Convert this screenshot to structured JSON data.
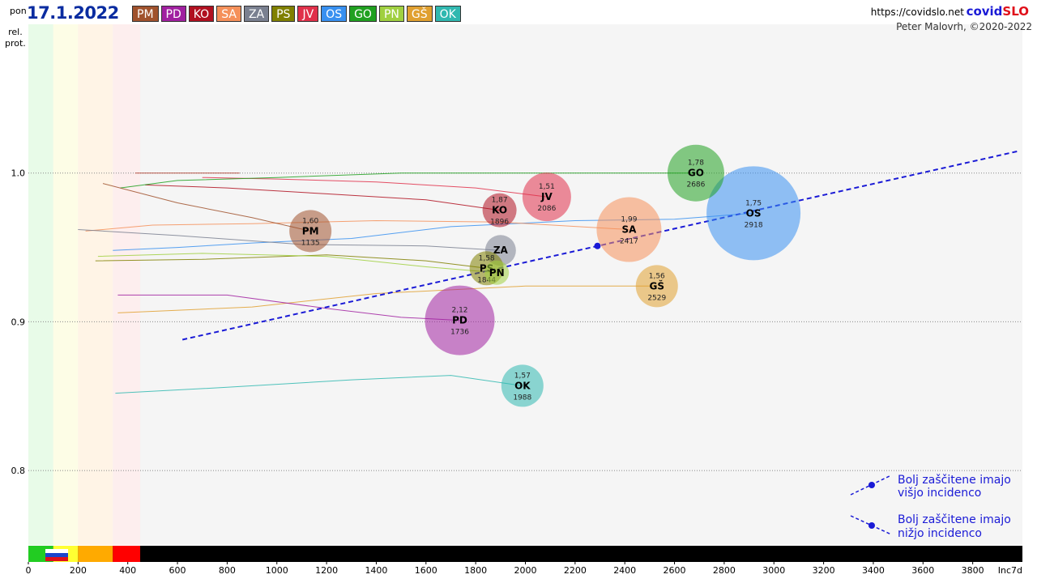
{
  "header": {
    "day": "pon",
    "date": "17.1.2022",
    "url": "https://covidslo.net",
    "brand_a": "covid",
    "brand_b": "SLO",
    "author": "Peter Malovrh, ©2020-2022"
  },
  "regions": [
    {
      "code": "PM",
      "color": "#a0522d"
    },
    {
      "code": "PD",
      "color": "#a020a0"
    },
    {
      "code": "KO",
      "color": "#b01020"
    },
    {
      "code": "SA",
      "color": "#f5905a"
    },
    {
      "code": "ZA",
      "color": "#7a8090"
    },
    {
      "code": "PS",
      "color": "#808000"
    },
    {
      "code": "JV",
      "color": "#e0304a"
    },
    {
      "code": "OS",
      "color": "#3890f0"
    },
    {
      "code": "GO",
      "color": "#20a020"
    },
    {
      "code": "PN",
      "color": "#a0d040"
    },
    {
      "code": "GŠ",
      "color": "#e0a030"
    },
    {
      "code": "OK",
      "color": "#30b8b0"
    }
  ],
  "chart_data": {
    "type": "scatter",
    "x_axis_label": "Inc7d",
    "y_axis_label": "rel. prot.",
    "xlim": [
      0,
      4000
    ],
    "ylim": [
      0.75,
      1.1
    ],
    "x_ticks": [
      "0",
      "200",
      "400",
      "600",
      "800",
      "1000",
      "1200",
      "1400",
      "1600",
      "1800",
      "2000",
      "2200",
      "2400",
      "2600",
      "2800",
      "3000",
      "3200",
      "3400",
      "3600",
      "3800"
    ],
    "y_ticks": [
      "0.8",
      "0.9",
      "1.0"
    ],
    "bubbles": [
      {
        "code": "PM",
        "x": 1135,
        "y": 0.961,
        "r_value": "1,60",
        "label": "1135",
        "radius": 26,
        "color": "#a0522d"
      },
      {
        "code": "PD",
        "x": 1736,
        "y": 0.901,
        "r_value": "2,12",
        "label": "1736",
        "radius": 43,
        "color": "#a020a0"
      },
      {
        "code": "KO",
        "x": 1896,
        "y": 0.975,
        "r_value": "1,87",
        "label": "1896",
        "radius": 21,
        "color": "#b01020"
      },
      {
        "code": "SA",
        "x": 2417,
        "y": 0.962,
        "r_value": "1,99",
        "label": "2417",
        "radius": 40,
        "color": "#f5905a"
      },
      {
        "code": "ZA",
        "x": 1900,
        "y": 0.948,
        "r_value": "",
        "label": "",
        "radius": 19,
        "color": "#7a8090"
      },
      {
        "code": "PS",
        "x": 1844,
        "y": 0.936,
        "r_value": "1,58",
        "label": "1844",
        "radius": 21,
        "color": "#808000"
      },
      {
        "code": "JV",
        "x": 2086,
        "y": 0.984,
        "r_value": "1,51",
        "label": "2086",
        "radius": 30,
        "color": "#e0304a"
      },
      {
        "code": "OS",
        "x": 2918,
        "y": 0.973,
        "r_value": "1,75",
        "label": "2918",
        "radius": 58,
        "color": "#3890f0"
      },
      {
        "code": "GO",
        "x": 2686,
        "y": 1.0,
        "r_value": "1,78",
        "label": "2686",
        "radius": 35,
        "color": "#20a020"
      },
      {
        "code": "PN",
        "x": 1885,
        "y": 0.933,
        "r_value": "",
        "label": "",
        "radius": 15,
        "color": "#a0d040"
      },
      {
        "code": "GŠ",
        "x": 2529,
        "y": 0.924,
        "r_value": "1,56",
        "label": "2529",
        "radius": 26,
        "color": "#e0a030"
      },
      {
        "code": "OK",
        "x": 1988,
        "y": 0.857,
        "r_value": "1,57",
        "label": "1988",
        "radius": 26,
        "color": "#30b8b0"
      }
    ],
    "trails": [
      {
        "code": "OS",
        "color": "#3890f0",
        "points": [
          [
            340,
            0.948
          ],
          [
            600,
            0.95
          ],
          [
            900,
            0.953
          ],
          [
            1300,
            0.956
          ],
          [
            1700,
            0.964
          ],
          [
            2200,
            0.968
          ],
          [
            2600,
            0.969
          ],
          [
            2918,
            0.973
          ]
        ]
      },
      {
        "code": "SA",
        "color": "#f5905a",
        "points": [
          [
            230,
            0.961
          ],
          [
            500,
            0.965
          ],
          [
            900,
            0.966
          ],
          [
            1400,
            0.968
          ],
          [
            1900,
            0.967
          ],
          [
            2417,
            0.962
          ]
        ]
      },
      {
        "code": "KO",
        "color": "#b01020",
        "points": [
          [
            470,
            0.992
          ],
          [
            800,
            0.99
          ],
          [
            1200,
            0.986
          ],
          [
            1600,
            0.982
          ],
          [
            1896,
            0.975
          ]
        ]
      },
      {
        "code": "JV",
        "color": "#e0304a",
        "points": [
          [
            700,
            0.997
          ],
          [
            1000,
            0.996
          ],
          [
            1400,
            0.994
          ],
          [
            1800,
            0.99
          ],
          [
            2086,
            0.984
          ]
        ]
      },
      {
        "code": "GO",
        "color": "#20a020",
        "points": [
          [
            370,
            0.99
          ],
          [
            600,
            0.995
          ],
          [
            1000,
            0.997
          ],
          [
            1500,
            1.0
          ],
          [
            2686,
            1.0
          ]
        ]
      },
      {
        "code": "PM",
        "color": "#a0522d",
        "points": [
          [
            300,
            0.993
          ],
          [
            600,
            0.98
          ],
          [
            900,
            0.97
          ],
          [
            1135,
            0.961
          ]
        ]
      },
      {
        "code": "ZA",
        "color": "#7a8090",
        "points": [
          [
            200,
            0.962
          ],
          [
            600,
            0.958
          ],
          [
            1100,
            0.952
          ],
          [
            1600,
            0.951
          ],
          [
            1900,
            0.948
          ]
        ]
      },
      {
        "code": "PS",
        "color": "#808000",
        "points": [
          [
            270,
            0.941
          ],
          [
            700,
            0.942
          ],
          [
            1200,
            0.945
          ],
          [
            1600,
            0.941
          ],
          [
            1844,
            0.936
          ]
        ]
      },
      {
        "code": "PN",
        "color": "#a0d040",
        "points": [
          [
            280,
            0.944
          ],
          [
            700,
            0.946
          ],
          [
            1200,
            0.944
          ],
          [
            1600,
            0.937
          ],
          [
            1885,
            0.933
          ]
        ]
      },
      {
        "code": "GŠ",
        "color": "#e0a030",
        "points": [
          [
            360,
            0.906
          ],
          [
            900,
            0.91
          ],
          [
            1400,
            0.919
          ],
          [
            2000,
            0.924
          ],
          [
            2529,
            0.924
          ]
        ]
      },
      {
        "code": "PD",
        "color": "#a020a0",
        "points": [
          [
            360,
            0.918
          ],
          [
            800,
            0.918
          ],
          [
            1200,
            0.909
          ],
          [
            1500,
            0.903
          ],
          [
            1736,
            0.901
          ]
        ]
      },
      {
        "code": "OK",
        "color": "#30b8b0",
        "points": [
          [
            350,
            0.852
          ],
          [
            800,
            0.856
          ],
          [
            1300,
            0.861
          ],
          [
            1700,
            0.864
          ],
          [
            1988,
            0.857
          ]
        ]
      },
      {
        "code": "PM2",
        "color": "#b04030",
        "points": [
          [
            430,
            1.0
          ],
          [
            850,
            1.0
          ]
        ]
      }
    ],
    "trend": {
      "x_from": 620,
      "y_from": 0.888,
      "x_to": 3990,
      "y_to": 1.015,
      "point_x": 2290,
      "point_y": 0.951
    },
    "legend": {
      "line1a": "Bolj  zaščitene imajo",
      "line1b": "višjo incidenco",
      "line2a": "Bolj  zaščitene imajo",
      "line2b": "nižjo incidenco"
    },
    "colors": {
      "bg": "#f5f5f5",
      "trend": "#1a1ad6"
    }
  }
}
